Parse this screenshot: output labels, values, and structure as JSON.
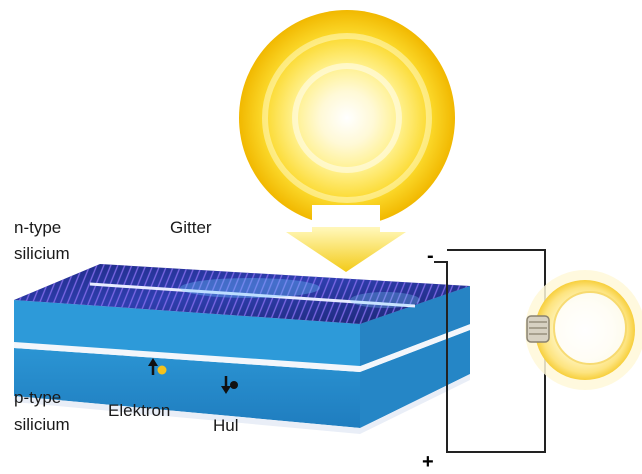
{
  "labels": {
    "n_type_line1": "n-type",
    "n_type_line2": "silicium",
    "grid": "Gitter",
    "p_type_line1": "p-type",
    "p_type_line2": "silicium",
    "electron": "Elektron",
    "hole": "Hul",
    "minus": "-",
    "plus": "+"
  },
  "colors": {
    "sun_core": "#ffffff",
    "sun_mid": "#fff3a0",
    "sun_outer": "#f5c400",
    "cell_top": "#1c2c8c",
    "cell_side": "#2a8fd0",
    "bulb_glow": "#fde27a",
    "wire": "#222222"
  },
  "icons": {
    "sun": "sun-icon",
    "arrow": "light-arrow-icon",
    "bulb": "light-bulb-icon"
  }
}
